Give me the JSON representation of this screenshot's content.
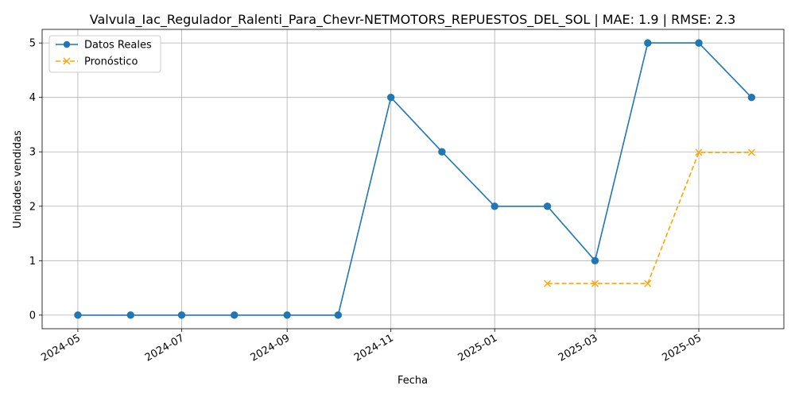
{
  "chart_data": {
    "type": "line",
    "title": "Valvula_Iac_Regulador_Ralenti_Para_Chevr-NETMOTORS_REPUESTOS_DEL_SOL | MAE: 1.9 | RMSE: 2.3",
    "xlabel": "Fecha",
    "ylabel": "Unidades vendidas",
    "xlim": [
      "2024-04-10",
      "2025-06-20"
    ],
    "ylim": [
      -0.25,
      5.25
    ],
    "x_ticks": [
      "2024-05",
      "2024-07",
      "2024-09",
      "2024-11",
      "2025-01",
      "2025-03",
      "2025-05"
    ],
    "y_ticks": [
      0,
      1,
      2,
      3,
      4,
      5
    ],
    "grid": true,
    "legend_position": "top-left",
    "series": [
      {
        "name": "Datos Reales",
        "color": "#1f77b4",
        "style": "solid",
        "marker": "circle",
        "x": [
          "2024-05-01",
          "2024-06-01",
          "2024-07-01",
          "2024-08-01",
          "2024-09-01",
          "2024-10-01",
          "2024-11-01",
          "2024-12-01",
          "2025-01-01",
          "2025-02-01",
          "2025-03-01",
          "2025-04-01",
          "2025-05-01",
          "2025-06-01"
        ],
        "values": [
          0,
          0,
          0,
          0,
          0,
          0,
          4,
          3,
          2,
          2,
          1,
          5,
          5,
          4
        ]
      },
      {
        "name": "Pronóstico",
        "color": "#ffa500",
        "style": "dashed",
        "marker": "x",
        "x": [
          "2025-02-01",
          "2025-03-01",
          "2025-04-01",
          "2025-05-01",
          "2025-06-01"
        ],
        "values": [
          0.58,
          0.58,
          0.58,
          2.99,
          2.99
        ]
      }
    ]
  }
}
